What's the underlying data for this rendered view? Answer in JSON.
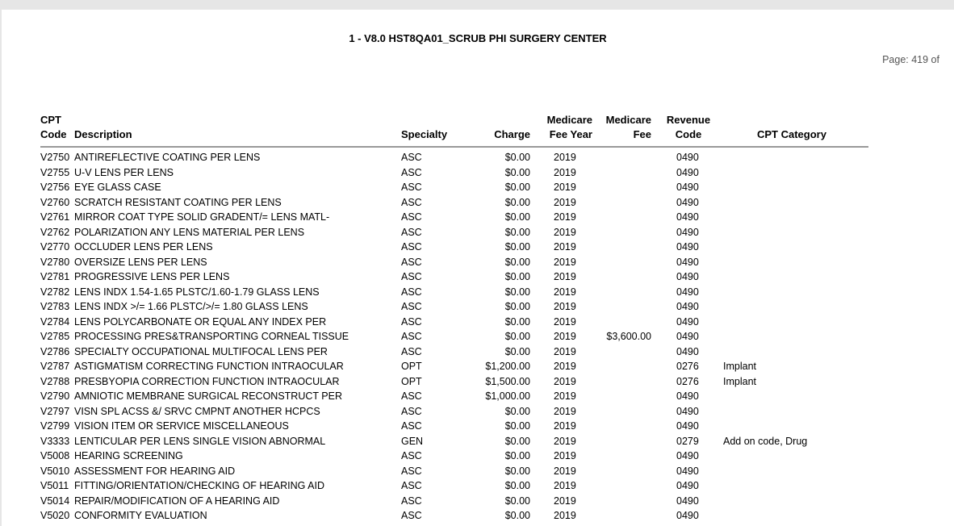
{
  "report": {
    "title": "1 - V8.0 HST8QA01_SCRUB PHI SURGERY CENTER",
    "page_label": "Page: 419 of"
  },
  "columns": {
    "code": [
      "CPT",
      "Code"
    ],
    "description": "Description",
    "specialty": "Specialty",
    "charge": "Charge",
    "fee_year": [
      "Medicare",
      "Fee Year"
    ],
    "medicare_fee": [
      "Medicare",
      "Fee"
    ],
    "revenue_code": [
      "Revenue",
      "Code"
    ],
    "cpt_category": "CPT Category"
  },
  "rows": [
    [
      "V2750",
      "ANTIREFLECTIVE COATING PER LENS",
      "ASC",
      "$0.00",
      "2019",
      "",
      "0490",
      ""
    ],
    [
      "V2755",
      "U-V LENS PER LENS",
      "ASC",
      "$0.00",
      "2019",
      "",
      "0490",
      ""
    ],
    [
      "V2756",
      "EYE GLASS CASE",
      "ASC",
      "$0.00",
      "2019",
      "",
      "0490",
      ""
    ],
    [
      "V2760",
      "SCRATCH RESISTANT COATING PER LENS",
      "ASC",
      "$0.00",
      "2019",
      "",
      "0490",
      ""
    ],
    [
      "V2761",
      "MIRROR COAT TYPE SOLID GRADENT/= LENS MATL-",
      "ASC",
      "$0.00",
      "2019",
      "",
      "0490",
      ""
    ],
    [
      "V2762",
      "POLARIZATION ANY LENS MATERIAL PER LENS",
      "ASC",
      "$0.00",
      "2019",
      "",
      "0490",
      ""
    ],
    [
      "V2770",
      "OCCLUDER LENS PER LENS",
      "ASC",
      "$0.00",
      "2019",
      "",
      "0490",
      ""
    ],
    [
      "V2780",
      "OVERSIZE LENS PER LENS",
      "ASC",
      "$0.00",
      "2019",
      "",
      "0490",
      ""
    ],
    [
      "V2781",
      "PROGRESSIVE LENS PER LENS",
      "ASC",
      "$0.00",
      "2019",
      "",
      "0490",
      ""
    ],
    [
      "V2782",
      "LENS INDX 1.54-1.65 PLSTC/1.60-1.79 GLASS LENS",
      "ASC",
      "$0.00",
      "2019",
      "",
      "0490",
      ""
    ],
    [
      "V2783",
      "LENS INDX >/= 1.66 PLSTC/>/= 1.80 GLASS LENS",
      "ASC",
      "$0.00",
      "2019",
      "",
      "0490",
      ""
    ],
    [
      "V2784",
      "LENS POLYCARBONATE OR EQUAL ANY INDEX PER",
      "ASC",
      "$0.00",
      "2019",
      "",
      "0490",
      ""
    ],
    [
      "V2785",
      "PROCESSING PRES&TRANSPORTING CORNEAL TISSUE",
      "ASC",
      "$0.00",
      "2019",
      "$3,600.00",
      "0490",
      ""
    ],
    [
      "V2786",
      "SPECIALTY OCCUPATIONAL MULTIFOCAL LENS PER",
      "ASC",
      "$0.00",
      "2019",
      "",
      "0490",
      ""
    ],
    [
      "V2787",
      "ASTIGMATISM CORRECTING FUNCTION INTRAOCULAR",
      "OPT",
      "$1,200.00",
      "2019",
      "",
      "0276",
      "Implant"
    ],
    [
      "V2788",
      "PRESBYOPIA CORRECTION FUNCTION INTRAOCULAR",
      "OPT",
      "$1,500.00",
      "2019",
      "",
      "0276",
      "Implant"
    ],
    [
      "V2790",
      "AMNIOTIC MEMBRANE SURGICAL RECONSTRUCT PER",
      "ASC",
      "$1,000.00",
      "2019",
      "",
      "0490",
      ""
    ],
    [
      "V2797",
      "VISN SPL ACSS &/ SRVC CMPNT ANOTHER HCPCS",
      "ASC",
      "$0.00",
      "2019",
      "",
      "0490",
      ""
    ],
    [
      "V2799",
      "VISION ITEM OR SERVICE MISCELLANEOUS",
      "ASC",
      "$0.00",
      "2019",
      "",
      "0490",
      ""
    ],
    [
      "V3333",
      "LENTICULAR PER LENS SINGLE VISION ABNORMAL",
      "GEN",
      "$0.00",
      "2019",
      "",
      "0279",
      "Add on code, Drug"
    ],
    [
      "V5008",
      "HEARING SCREENING",
      "ASC",
      "$0.00",
      "2019",
      "",
      "0490",
      ""
    ],
    [
      "V5010",
      "ASSESSMENT FOR HEARING AID",
      "ASC",
      "$0.00",
      "2019",
      "",
      "0490",
      ""
    ],
    [
      "V5011",
      "FITTING/ORIENTATION/CHECKING OF HEARING AID",
      "ASC",
      "$0.00",
      "2019",
      "",
      "0490",
      ""
    ],
    [
      "V5014",
      "REPAIR/MODIFICATION OF A HEARING AID",
      "ASC",
      "$0.00",
      "2019",
      "",
      "0490",
      ""
    ],
    [
      "V5020",
      "CONFORMITY EVALUATION",
      "ASC",
      "$0.00",
      "2019",
      "",
      "0490",
      ""
    ]
  ]
}
